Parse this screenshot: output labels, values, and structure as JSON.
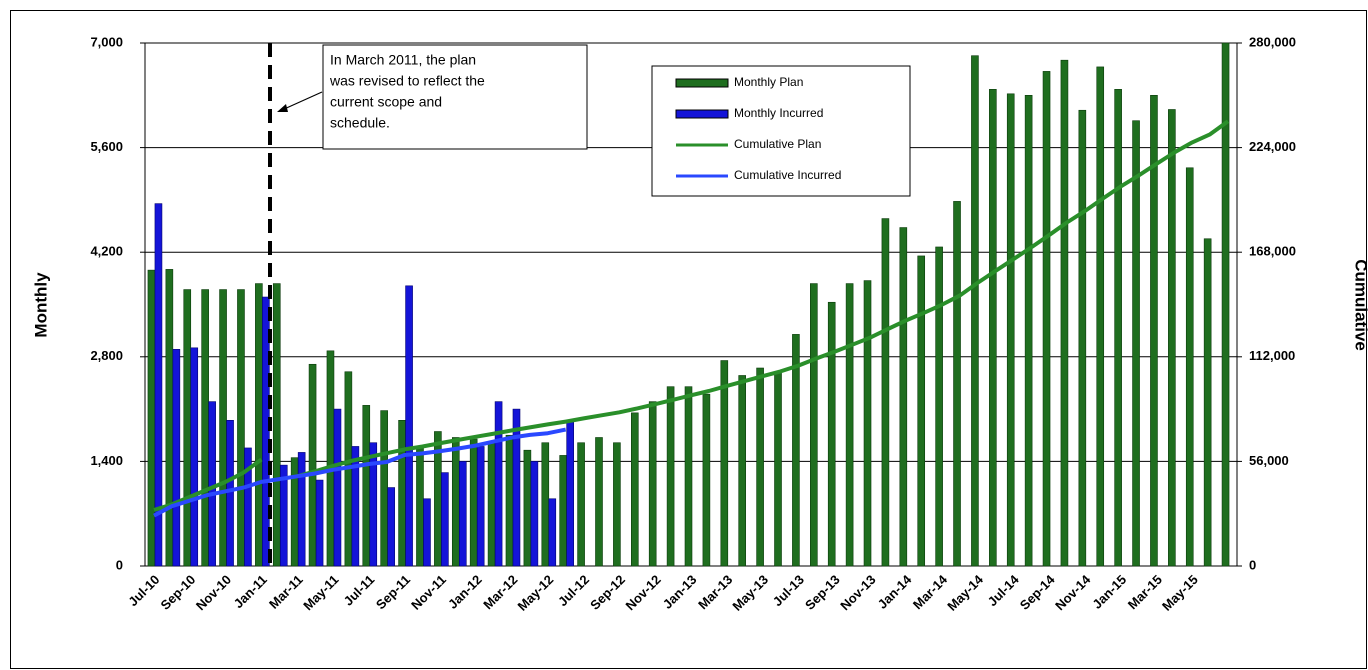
{
  "chart_data": {
    "type": "bar-line",
    "y_label": "Monthly",
    "y2_label": "Cumulative",
    "annotation": [
      "In March 2011, the plan",
      "was revised to reflect the",
      "current scope and",
      "schedule."
    ],
    "categories": [
      "Jul-10",
      null,
      "Sep-10",
      null,
      "Nov-10",
      null,
      "Jan-11",
      null,
      "Mar-11",
      null,
      "May-11",
      null,
      "Jul-11",
      null,
      "Sep-11",
      null,
      "Nov-11",
      null,
      "Jan-12",
      null,
      "Mar-12",
      null,
      "May-12",
      null,
      "Jul-12",
      null,
      "Sep-12",
      null,
      "Nov-12",
      null,
      "Jan-13",
      null,
      "Mar-13",
      null,
      "May-13",
      null,
      "Jul-13",
      null,
      "Sep-13",
      null,
      "Nov-13",
      null,
      "Jan-14",
      null,
      "Mar-14",
      null,
      "May-14",
      null,
      "Jul-14",
      null,
      "Sep-14",
      null,
      "Nov-14",
      null,
      "Jan-15",
      null,
      "Mar-15",
      null,
      "May-15",
      null,
      null
    ],
    "series": [
      {
        "name": "Monthly Plan",
        "kind": "bar",
        "color": "#1f6e1f",
        "values": [
          3960,
          3970,
          3700,
          3700,
          3700,
          3700,
          3780,
          3780,
          1450,
          2700,
          2880,
          2600,
          2150,
          2080,
          1950,
          1600,
          1800,
          1720,
          1700,
          1650,
          1750,
          1550,
          1650,
          1480,
          1650,
          1720,
          1650,
          2050,
          2200,
          2400,
          2400,
          2300,
          2750,
          2550,
          2650,
          2600,
          3100,
          3780,
          3530,
          3780,
          3820,
          4650,
          4530,
          4150,
          4270,
          4880,
          6830,
          6380,
          6320,
          6300,
          6620,
          6770,
          6100,
          6680,
          6380,
          5960,
          6300,
          6110,
          5330,
          4380,
          7000
        ]
      },
      {
        "name": "Monthly Incurred",
        "kind": "bar",
        "color": "#1414d8",
        "values": [
          4850,
          2900,
          2920,
          2200,
          1950,
          1580,
          3600,
          1350,
          1520,
          1150,
          2100,
          1600,
          1650,
          1050,
          3750,
          900,
          1250,
          1400,
          1600,
          2200,
          2100,
          1400,
          900,
          1950,
          null,
          null,
          null,
          null,
          null,
          null,
          null,
          null,
          null,
          null,
          null,
          null,
          null,
          null,
          null,
          null,
          null,
          null,
          null,
          null,
          null,
          null,
          null,
          null,
          null,
          null,
          null,
          null,
          null,
          null,
          null,
          null,
          null,
          null,
          null,
          null,
          null
        ]
      },
      {
        "name": "Cumulative Plan",
        "kind": "line",
        "axis": "y2",
        "color": "#2a8f2a",
        "values": [
          30000,
          33000,
          37000,
          41000,
          45000,
          50000,
          57000,
          null,
          48000,
          50700,
          53600,
          56200,
          58300,
          60400,
          62400,
          64000,
          65800,
          67500,
          69200,
          70900,
          72600,
          74200,
          75800,
          77300,
          79000,
          80700,
          82300,
          84400,
          86600,
          89000,
          91400,
          93700,
          96400,
          99000,
          101600,
          104200,
          107300,
          111100,
          114600,
          118400,
          122200,
          126900,
          131400,
          135500,
          139800,
          144700,
          151500,
          157900,
          164200,
          170500,
          177100,
          183900,
          190000,
          196700,
          203100,
          209000,
          215300,
          221400,
          226800,
          231100,
          238100
        ]
      },
      {
        "name": "Cumulative Incurred",
        "kind": "line",
        "axis": "y2",
        "color": "#2a48ff",
        "values": [
          27000,
          32000,
          35000,
          38000,
          40000,
          42000,
          45000,
          46500,
          48000,
          49500,
          51500,
          53000,
          54600,
          55700,
          59400,
          60300,
          61500,
          62900,
          64500,
          66700,
          68800,
          70200,
          71100,
          73000,
          null,
          null,
          null,
          null,
          null,
          null,
          null,
          null,
          null,
          null,
          null,
          null,
          null,
          null,
          null,
          null,
          null,
          null,
          null,
          null,
          null,
          null,
          null,
          null,
          null,
          null,
          null,
          null,
          null,
          null,
          null,
          null,
          null,
          null,
          null,
          null,
          null
        ]
      }
    ],
    "ylim": [
      0,
      7000
    ],
    "yticks": [
      0,
      {
        "value": 1400,
        "label": "1,400"
      },
      {
        "value": 2800,
        "label": "2,800"
      },
      {
        "value": 4200,
        "label": "4,200"
      },
      {
        "value": 5600,
        "label": "5,600"
      },
      {
        "value": 7000,
        "label": "7,000"
      }
    ],
    "y2lim": [
      0,
      280000
    ],
    "y2ticks": [
      0,
      {
        "value": 56000,
        "label": "56,000"
      },
      {
        "value": 112000,
        "label": "112,000"
      },
      {
        "value": 168000,
        "label": "168,000"
      },
      {
        "value": 224000,
        "label": "224,000"
      },
      {
        "value": 280000,
        "label": "280,000"
      }
    ],
    "grid": true
  }
}
